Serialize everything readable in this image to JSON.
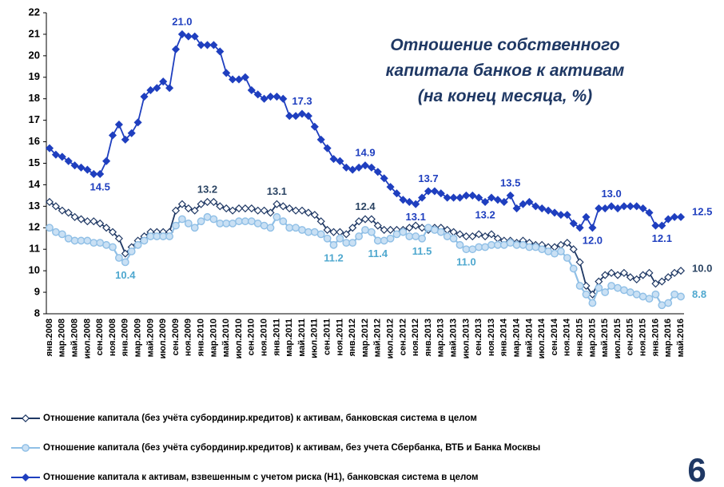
{
  "chart_data": {
    "type": "line",
    "title": [
      "Отношение собственного",
      "капитала  банков к активам",
      "(на конец месяца, %)"
    ],
    "page_number": "6",
    "categories": [
      "янв.2008",
      null,
      "мар.2008",
      null,
      "май.2008",
      null,
      "июл.2008",
      null,
      "сен.2008",
      null,
      "ноя.2008",
      null,
      "янв.2009",
      null,
      "мар.2009",
      null,
      "май.2009",
      null,
      "июл.2009",
      null,
      "сен.2009",
      null,
      "ноя.2009",
      null,
      "янв.2010",
      null,
      "мар.2010",
      null,
      "май.2010",
      null,
      "июл.2010",
      null,
      "сен.2010",
      null,
      "ноя.2010",
      null,
      "янв.2011",
      null,
      "мар.2011",
      null,
      "май.2011",
      null,
      "июл.2011",
      null,
      "сен.2011",
      null,
      "ноя.2011",
      null,
      "янв.2012",
      null,
      "мар.2012",
      null,
      "май.2012",
      null,
      "июл.2012",
      null,
      "сен.2012",
      null,
      "ноя.2012",
      null,
      "янв.2013",
      null,
      "мар.2013",
      null,
      "май.2013",
      null,
      "июл.2013",
      null,
      "сен.2013",
      null,
      "ноя.2013",
      null,
      "янв.2014",
      null,
      "мар.2014",
      null,
      "май.2014",
      null,
      "июл.2014",
      null,
      "сен.2014",
      null,
      "ноя.2014",
      null,
      "янв.2015",
      null,
      "мар.2015",
      null,
      "май.2015",
      null,
      "июл.2015",
      null,
      "сен.2015",
      null,
      "ноя.2015",
      null,
      "янв.2016",
      null,
      "мар.2016",
      null,
      "май.2016"
    ],
    "ylim": [
      8,
      22
    ],
    "yticks": [
      8,
      9,
      10,
      11,
      12,
      13,
      14,
      15,
      16,
      17,
      18,
      19,
      20,
      21,
      22
    ],
    "grid": false,
    "legend": "bottom",
    "series": [
      {
        "name": "Отношение  капитала (без учёта субординир.кредитов)  к активам,  банковская система  в целом",
        "color": "#1f3864",
        "marker": "diamond-open",
        "label_color": "#2b4463",
        "values": [
          13.2,
          13.0,
          12.8,
          12.7,
          12.5,
          12.4,
          12.3,
          12.3,
          12.2,
          12.0,
          11.8,
          11.5,
          10.8,
          11.1,
          11.4,
          11.6,
          11.8,
          11.8,
          11.8,
          11.8,
          12.8,
          13.1,
          12.9,
          12.8,
          13.1,
          13.2,
          13.2,
          13.0,
          12.9,
          12.8,
          12.9,
          12.9,
          12.9,
          12.8,
          12.8,
          12.7,
          13.1,
          13.0,
          12.9,
          12.8,
          12.8,
          12.7,
          12.6,
          12.3,
          11.9,
          11.8,
          11.8,
          11.7,
          12.0,
          12.3,
          12.4,
          12.4,
          12.1,
          11.9,
          11.9,
          11.9,
          11.9,
          12.0,
          12.1,
          12.0,
          11.9,
          12.0,
          12.0,
          11.9,
          11.8,
          11.7,
          11.6,
          11.6,
          11.7,
          11.6,
          11.7,
          11.5,
          11.4,
          11.4,
          11.3,
          11.4,
          11.3,
          11.2,
          11.2,
          11.1,
          11.1,
          11.2,
          11.3,
          11.0,
          10.4,
          9.3,
          8.9,
          9.5,
          9.8,
          9.9,
          9.8,
          9.9,
          9.7,
          9.6,
          9.8,
          9.9,
          9.4,
          9.5,
          9.7,
          9.9,
          10.0
        ],
        "value_labels": [
          null,
          null,
          null,
          null,
          null,
          null,
          null,
          null,
          null,
          null,
          null,
          null,
          null,
          null,
          null,
          null,
          null,
          null,
          null,
          null,
          null,
          null,
          null,
          null,
          null,
          "13.2",
          null,
          null,
          null,
          null,
          null,
          null,
          null,
          null,
          null,
          null,
          "13.1",
          null,
          null,
          null,
          null,
          null,
          null,
          null,
          null,
          null,
          null,
          null,
          null,
          null,
          "12.4",
          null,
          null,
          null,
          null,
          null,
          null,
          null,
          null,
          null,
          null,
          null,
          null,
          null,
          null,
          null,
          null,
          null,
          null,
          null,
          null,
          null,
          null,
          null,
          null,
          null,
          null,
          null,
          null,
          null,
          null,
          null,
          null,
          null,
          null,
          null,
          null,
          null,
          null,
          null,
          null,
          null,
          null,
          null,
          null,
          null,
          null,
          null,
          null,
          null,
          "10.0"
        ]
      },
      {
        "name": "Отношение  капитала (без учёта субординир.кредитов)  к активам,  без учета Сбербанка, ВТБ и Банка Москвы",
        "color": "#8fbfe6",
        "marker": "circle",
        "label_color": "#4fa8cf",
        "values": [
          12.0,
          11.8,
          11.7,
          11.5,
          11.4,
          11.4,
          11.4,
          11.3,
          11.3,
          11.2,
          11.1,
          10.6,
          10.4,
          10.9,
          11.2,
          11.4,
          11.6,
          11.6,
          11.6,
          11.6,
          12.1,
          12.4,
          12.2,
          12.0,
          12.3,
          12.5,
          12.4,
          12.2,
          12.2,
          12.2,
          12.3,
          12.3,
          12.3,
          12.2,
          12.1,
          12.0,
          12.5,
          12.3,
          12.0,
          12.0,
          11.9,
          11.8,
          11.8,
          11.7,
          11.5,
          11.2,
          11.5,
          11.3,
          11.3,
          11.6,
          11.9,
          11.8,
          11.4,
          11.4,
          11.5,
          11.7,
          11.8,
          11.6,
          11.6,
          11.5,
          12.0,
          11.9,
          11.8,
          11.6,
          11.5,
          11.2,
          11.0,
          11.0,
          11.1,
          11.1,
          11.2,
          11.2,
          11.2,
          11.3,
          11.2,
          11.2,
          11.1,
          11.1,
          11.0,
          10.9,
          10.8,
          10.9,
          10.6,
          10.1,
          9.3,
          8.9,
          8.5,
          9.2,
          9.0,
          9.3,
          9.2,
          9.1,
          9.0,
          8.9,
          8.8,
          8.7,
          8.9,
          8.4,
          8.5,
          8.9,
          8.8
        ],
        "value_labels": [
          null,
          null,
          null,
          null,
          null,
          null,
          null,
          null,
          null,
          null,
          null,
          null,
          "10.4",
          null,
          null,
          null,
          null,
          null,
          null,
          null,
          null,
          null,
          null,
          null,
          null,
          null,
          null,
          null,
          null,
          null,
          null,
          null,
          null,
          null,
          null,
          null,
          null,
          null,
          null,
          null,
          null,
          null,
          null,
          null,
          null,
          "11.2",
          null,
          null,
          null,
          null,
          null,
          null,
          "11.4",
          null,
          null,
          null,
          null,
          null,
          null,
          "11.5",
          null,
          null,
          null,
          null,
          null,
          null,
          "11.0",
          null,
          null,
          null,
          null,
          null,
          null,
          null,
          null,
          null,
          null,
          null,
          null,
          null,
          null,
          null,
          null,
          null,
          null,
          null,
          null,
          null,
          null,
          null,
          null,
          null,
          null,
          null,
          null,
          null,
          null,
          null,
          null,
          null,
          "8.8"
        ]
      },
      {
        "name": "Отношение  капитала к активам,  взвешенным  с учетом  риска  (Н1),  банковская система  в целом",
        "color": "#1f3fbf",
        "marker": "diamond",
        "label_color": "#1f3fbf",
        "values": [
          15.7,
          15.4,
          15.3,
          15.1,
          14.9,
          14.8,
          14.7,
          14.5,
          14.5,
          15.1,
          16.3,
          16.8,
          16.1,
          16.4,
          16.9,
          18.1,
          18.4,
          18.5,
          18.8,
          18.5,
          20.3,
          21.0,
          20.9,
          20.9,
          20.5,
          20.5,
          20.5,
          20.2,
          19.2,
          18.9,
          18.9,
          19.0,
          18.4,
          18.2,
          18.0,
          18.1,
          18.1,
          18.0,
          17.2,
          17.2,
          17.3,
          17.2,
          16.7,
          16.1,
          15.7,
          15.2,
          15.1,
          14.8,
          14.7,
          14.8,
          14.9,
          14.8,
          14.6,
          14.3,
          13.9,
          13.6,
          13.3,
          13.2,
          13.1,
          13.4,
          13.7,
          13.7,
          13.6,
          13.4,
          13.4,
          13.4,
          13.5,
          13.5,
          13.4,
          13.2,
          13.4,
          13.3,
          13.2,
          13.5,
          12.9,
          13.1,
          13.2,
          13.0,
          12.9,
          12.8,
          12.7,
          12.6,
          12.6,
          12.2,
          12.0,
          12.5,
          12.0,
          12.9,
          12.9,
          13.0,
          12.9,
          13.0,
          13.0,
          13.0,
          12.9,
          12.7,
          12.1,
          12.1,
          12.4,
          12.5,
          12.5
        ],
        "value_labels": [
          null,
          null,
          null,
          null,
          null,
          null,
          null,
          null,
          "14.5",
          null,
          null,
          null,
          null,
          null,
          null,
          null,
          null,
          null,
          null,
          null,
          null,
          "21.0",
          null,
          null,
          null,
          null,
          null,
          null,
          null,
          null,
          null,
          null,
          null,
          null,
          null,
          null,
          null,
          null,
          null,
          null,
          "17.3",
          null,
          null,
          null,
          null,
          null,
          null,
          null,
          null,
          null,
          "14.9",
          null,
          null,
          null,
          null,
          null,
          null,
          null,
          "13.1",
          null,
          "13.7",
          null,
          null,
          null,
          null,
          null,
          null,
          null,
          null,
          "13.2",
          null,
          null,
          null,
          "13.5",
          null,
          null,
          null,
          null,
          null,
          null,
          null,
          null,
          null,
          null,
          null,
          null,
          "12.0",
          null,
          null,
          "13.0",
          null,
          null,
          null,
          null,
          null,
          null,
          null,
          "12.1",
          null,
          null,
          "12.5"
        ]
      }
    ]
  }
}
